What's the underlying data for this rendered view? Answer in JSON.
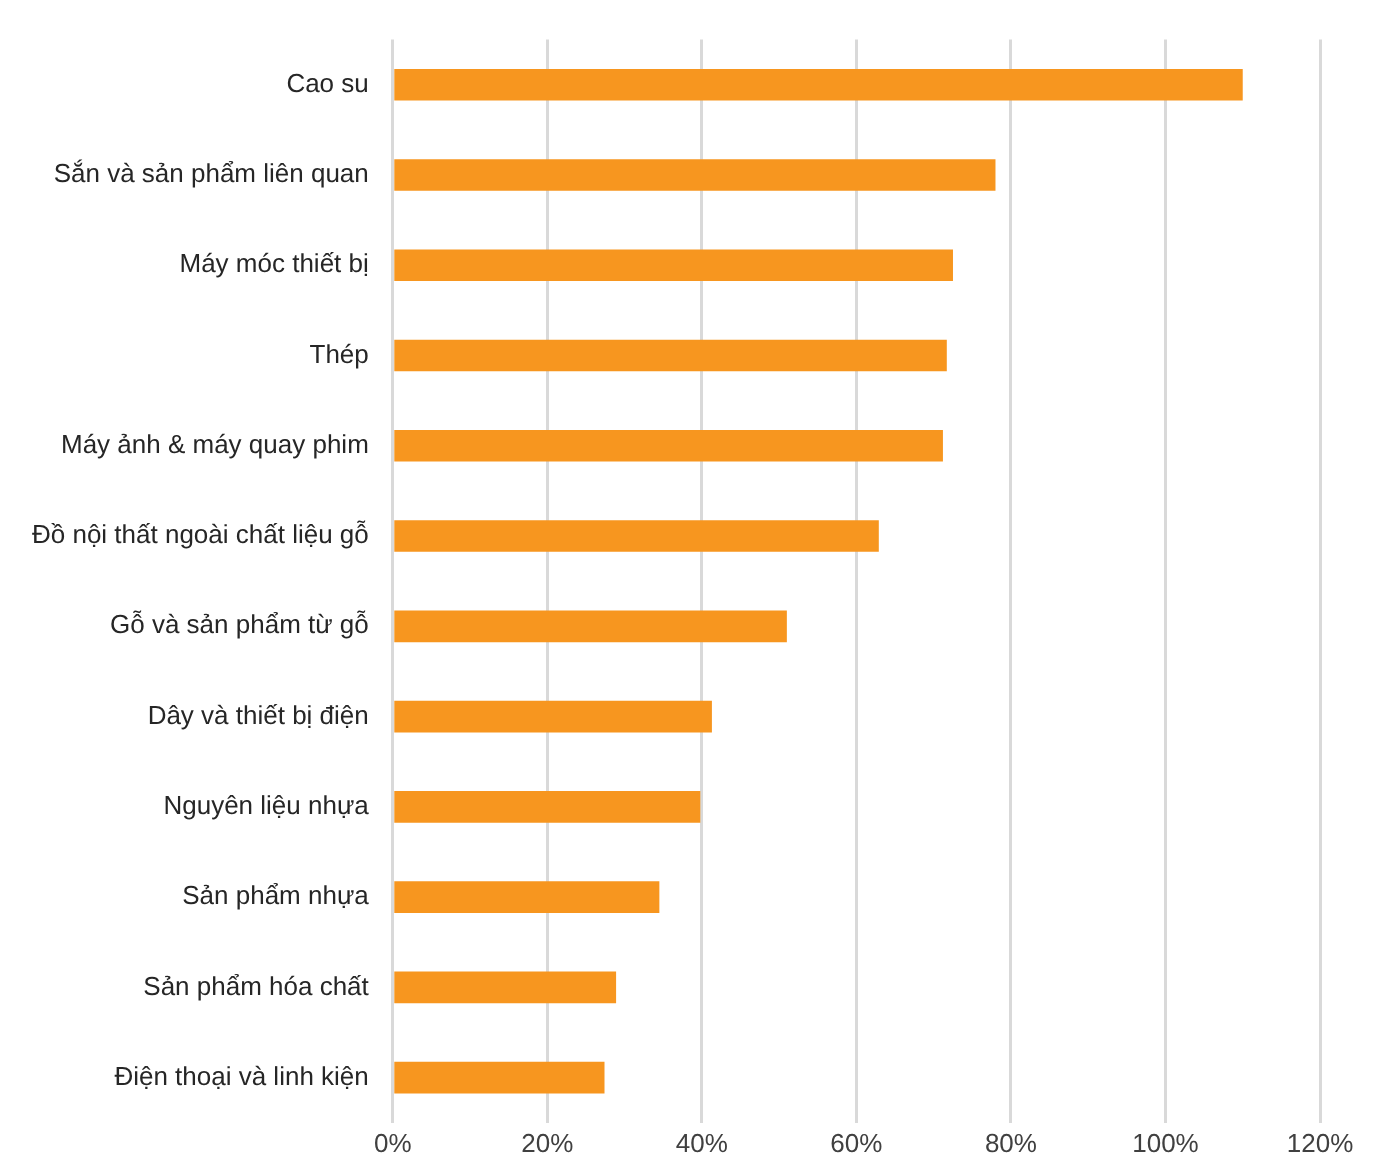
{
  "chart_data": {
    "type": "bar",
    "orientation": "horizontal",
    "categories": [
      "Cao su",
      "Sắn và sản phẩm liên quan",
      "Máy móc thiết bị",
      "Thép",
      "Máy ảnh & máy quay phim",
      "Đồ nội thất ngoài chất liệu gỗ",
      "Gỗ và sản phẩm từ gỗ",
      "Dây và thiết bị điện",
      "Nguyên liệu nhựa",
      "Sản phẩm nhựa",
      "Sản phẩm hóa chất",
      "Điện thoại và linh kiện"
    ],
    "values": [
      110,
      78,
      72.5,
      71.7,
      71.2,
      62.9,
      51,
      41.3,
      39.8,
      34.5,
      28.9,
      27.4
    ],
    "color": "#f7961f",
    "xlim": [
      0,
      120
    ],
    "xticks": [
      {
        "value": 0,
        "label": "0%"
      },
      {
        "value": 20,
        "label": "20%"
      },
      {
        "value": 40,
        "label": "40%"
      },
      {
        "value": 60,
        "label": "60%"
      },
      {
        "value": 80,
        "label": "80%"
      },
      {
        "value": 100,
        "label": "100%"
      },
      {
        "value": 120,
        "label": "120%"
      }
    ],
    "grid": "x",
    "legend": false
  }
}
